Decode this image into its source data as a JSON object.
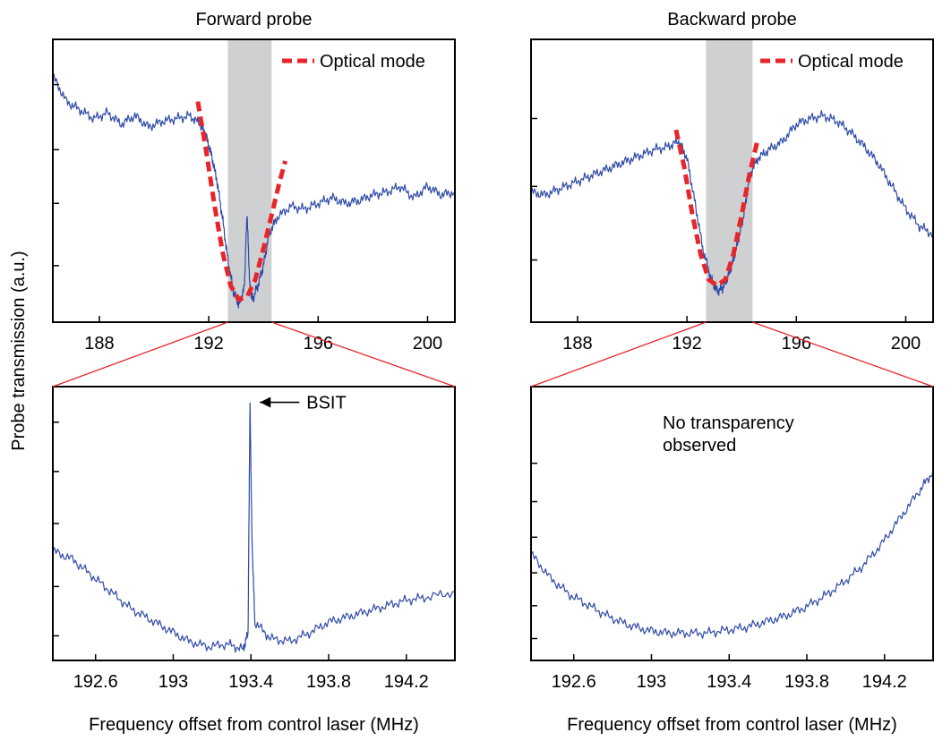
{
  "figure": {
    "ylabel": "Probe transmission (a.u.)",
    "xlabel_bottom": "Frequency offset from control laser (MHz)"
  },
  "colors": {
    "trace": "#2f4aa6",
    "fit": "#e8262a",
    "band": "#cfd0d2",
    "zoom_lines": "#e8262a"
  },
  "chart_data": [
    {
      "id": "forward-top",
      "type": "line",
      "title": "Forward probe",
      "xlabel": "",
      "ylabel": "",
      "xlim": [
        186.3,
        201.0
      ],
      "ylim": [
        0,
        1
      ],
      "xticks": [
        188,
        192,
        196,
        200
      ],
      "xtick_labels": [
        "188",
        "192",
        "196",
        "200"
      ],
      "yticks": [
        0.2,
        0.42,
        0.61,
        0.84
      ],
      "highlight_band": [
        192.7,
        194.3
      ],
      "legend": {
        "entries": [
          "Optical mode"
        ],
        "placement": "top-right"
      },
      "series": [
        {
          "name": "",
          "style": "solid",
          "x": [
            186.3,
            186.8,
            187.3,
            187.8,
            188.3,
            188.8,
            189.3,
            189.8,
            190.3,
            190.8,
            191.3,
            191.7,
            191.9,
            192.1,
            192.3,
            192.5,
            192.7,
            192.9,
            193.1,
            193.3,
            193.4,
            193.5,
            193.6,
            193.8,
            194.0,
            194.2,
            194.5,
            195.0,
            195.5,
            196.0,
            196.5,
            197.0,
            197.5,
            198.0,
            198.5,
            199.0,
            199.5,
            200.0,
            200.5,
            201.0
          ],
          "y": [
            0.87,
            0.78,
            0.75,
            0.72,
            0.74,
            0.7,
            0.73,
            0.69,
            0.71,
            0.72,
            0.73,
            0.7,
            0.66,
            0.59,
            0.5,
            0.37,
            0.22,
            0.11,
            0.06,
            0.12,
            0.39,
            0.13,
            0.08,
            0.13,
            0.2,
            0.31,
            0.37,
            0.41,
            0.4,
            0.42,
            0.44,
            0.42,
            0.43,
            0.45,
            0.46,
            0.48,
            0.44,
            0.48,
            0.45,
            0.46
          ]
        },
        {
          "name": "Optical mode",
          "style": "dashed",
          "x": [
            191.6,
            191.9,
            192.2,
            192.5,
            192.8,
            193.1,
            193.4,
            193.7,
            194.0,
            194.3,
            194.6,
            194.8
          ],
          "y": [
            0.78,
            0.61,
            0.42,
            0.25,
            0.13,
            0.08,
            0.09,
            0.15,
            0.26,
            0.38,
            0.5,
            0.57
          ]
        }
      ]
    },
    {
      "id": "backward-top",
      "type": "line",
      "title": "Backward probe",
      "xlabel": "",
      "ylabel": "",
      "xlim": [
        186.3,
        201.0
      ],
      "ylim": [
        0,
        1
      ],
      "xticks": [
        188,
        192,
        196,
        200
      ],
      "xtick_labels": [
        "188",
        "192",
        "196",
        "200"
      ],
      "yticks": [
        0.22,
        0.48,
        0.72
      ],
      "highlight_band": [
        192.7,
        194.4
      ],
      "legend": {
        "entries": [
          "Optical mode"
        ],
        "placement": "top-right"
      },
      "series": [
        {
          "name": "",
          "style": "solid",
          "x": [
            186.3,
            186.8,
            187.3,
            187.8,
            188.3,
            188.8,
            189.3,
            189.8,
            190.3,
            190.8,
            191.3,
            191.7,
            192.0,
            192.3,
            192.6,
            192.9,
            193.1,
            193.3,
            193.5,
            193.7,
            193.9,
            194.1,
            194.3,
            194.6,
            195.0,
            195.5,
            196.0,
            196.5,
            197.0,
            197.5,
            198.0,
            198.5,
            199.0,
            199.5,
            200.0,
            200.5,
            201.0
          ],
          "y": [
            0.46,
            0.45,
            0.47,
            0.49,
            0.51,
            0.53,
            0.55,
            0.57,
            0.59,
            0.61,
            0.62,
            0.64,
            0.58,
            0.42,
            0.25,
            0.15,
            0.11,
            0.12,
            0.16,
            0.22,
            0.3,
            0.39,
            0.52,
            0.58,
            0.61,
            0.64,
            0.7,
            0.72,
            0.73,
            0.71,
            0.67,
            0.62,
            0.56,
            0.48,
            0.4,
            0.34,
            0.31
          ]
        },
        {
          "name": "Optical mode",
          "style": "dashed",
          "x": [
            191.6,
            191.9,
            192.2,
            192.5,
            192.8,
            193.1,
            193.4,
            193.7,
            194.0,
            194.3,
            194.6
          ],
          "y": [
            0.68,
            0.55,
            0.38,
            0.24,
            0.15,
            0.13,
            0.15,
            0.24,
            0.38,
            0.53,
            0.65
          ]
        }
      ]
    },
    {
      "id": "forward-bottom",
      "type": "line",
      "title": "",
      "xlabel": "Frequency offset from control laser (MHz)",
      "ylabel": "",
      "xlim": [
        192.38,
        194.45
      ],
      "ylim": [
        0,
        1
      ],
      "xticks": [
        192.6,
        193.0,
        193.4,
        193.8,
        194.2
      ],
      "xtick_labels": [
        "192.6",
        "193",
        "193.4",
        "193.8",
        "194.2"
      ],
      "yticks": [
        0.09,
        0.27,
        0.5,
        0.69,
        0.87
      ],
      "annotation": {
        "text": "BSIT",
        "x": 193.4,
        "y": 0.91
      },
      "series": [
        {
          "name": "",
          "style": "solid",
          "x": [
            192.38,
            192.48,
            192.58,
            192.68,
            192.78,
            192.88,
            192.98,
            193.08,
            193.18,
            193.28,
            193.36,
            193.385,
            193.395,
            193.405,
            193.42,
            193.5,
            193.6,
            193.7,
            193.8,
            193.9,
            194.0,
            194.1,
            194.2,
            194.3,
            194.45
          ],
          "y": [
            0.4,
            0.37,
            0.31,
            0.25,
            0.19,
            0.15,
            0.11,
            0.07,
            0.05,
            0.06,
            0.04,
            0.1,
            0.95,
            0.45,
            0.14,
            0.08,
            0.07,
            0.1,
            0.14,
            0.16,
            0.18,
            0.2,
            0.22,
            0.23,
            0.25
          ]
        }
      ]
    },
    {
      "id": "backward-bottom",
      "type": "line",
      "title": "",
      "xlabel": "Frequency offset from control laser (MHz)",
      "ylabel": "",
      "xlim": [
        192.38,
        194.45
      ],
      "ylim": [
        0,
        1
      ],
      "xticks": [
        192.6,
        193.0,
        193.4,
        193.8,
        194.2
      ],
      "xtick_labels": [
        "192.6",
        "193",
        "193.4",
        "193.8",
        "194.2"
      ],
      "yticks": [
        0.08,
        0.2,
        0.32,
        0.45,
        0.58,
        0.72
      ],
      "annotation": {
        "text": "No transparency observed",
        "x": 193.5,
        "y": 0.86
      },
      "series": [
        {
          "name": "",
          "style": "solid",
          "x": [
            192.38,
            192.48,
            192.58,
            192.68,
            192.78,
            192.88,
            192.98,
            193.08,
            193.18,
            193.28,
            193.38,
            193.48,
            193.58,
            193.68,
            193.78,
            193.88,
            193.98,
            194.08,
            194.18,
            194.28,
            194.38,
            194.45
          ],
          "y": [
            0.39,
            0.3,
            0.24,
            0.2,
            0.16,
            0.13,
            0.11,
            0.1,
            0.1,
            0.1,
            0.11,
            0.12,
            0.14,
            0.16,
            0.19,
            0.23,
            0.28,
            0.34,
            0.42,
            0.52,
            0.62,
            0.69
          ]
        }
      ]
    }
  ]
}
